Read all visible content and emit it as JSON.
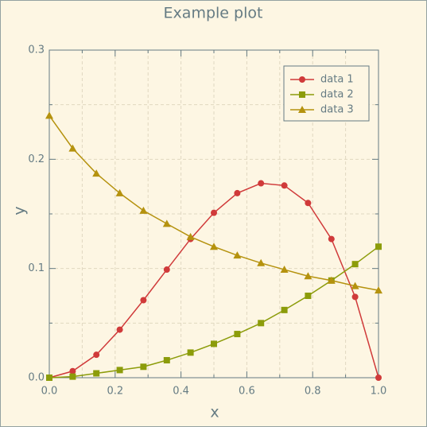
{
  "chart_data": {
    "type": "line",
    "title": "Example plot",
    "xlabel": "x",
    "ylabel": "y",
    "x": [
      0,
      0.071,
      0.143,
      0.214,
      0.286,
      0.357,
      0.429,
      0.5,
      0.571,
      0.643,
      0.714,
      0.786,
      0.857,
      0.929,
      1
    ],
    "series": [
      {
        "name": "data 1",
        "color": "#d03a3a",
        "marker": "circle",
        "values": [
          0,
          0.006,
          0.021,
          0.044,
          0.071,
          0.099,
          0.127,
          0.151,
          0.169,
          0.178,
          0.176,
          0.16,
          0.127,
          0.074,
          0
        ]
      },
      {
        "name": "data 2",
        "color": "#8c9c0a",
        "marker": "square",
        "values": [
          0,
          0.001,
          0.004,
          0.007,
          0.01,
          0.016,
          0.023,
          0.031,
          0.04,
          0.05,
          0.062,
          0.075,
          0.089,
          0.104,
          0.12
        ]
      },
      {
        "name": "data 3",
        "color": "#b5920e",
        "marker": "triangle",
        "values": [
          0.24,
          0.21,
          0.187,
          0.169,
          0.153,
          0.141,
          0.129,
          0.12,
          0.112,
          0.105,
          0.099,
          0.093,
          0.089,
          0.084,
          0.08
        ]
      }
    ],
    "xlim": [
      0,
      1
    ],
    "ylim": [
      0,
      0.3
    ],
    "xticks": [
      {
        "value": 0,
        "label": "0.0"
      },
      0.2,
      0.4,
      0.6,
      0.8,
      {
        "value": 1,
        "label": "1.0"
      }
    ],
    "yticks": [
      {
        "value": 0,
        "label": "0.0"
      },
      0.1,
      0.2,
      0.3
    ],
    "minor_xticks": [
      0.1,
      0.3,
      0.5,
      0.7,
      0.9
    ],
    "minor_yticks": [
      0.05,
      0.15,
      0.25
    ],
    "grid": true,
    "legend": "upper right"
  }
}
